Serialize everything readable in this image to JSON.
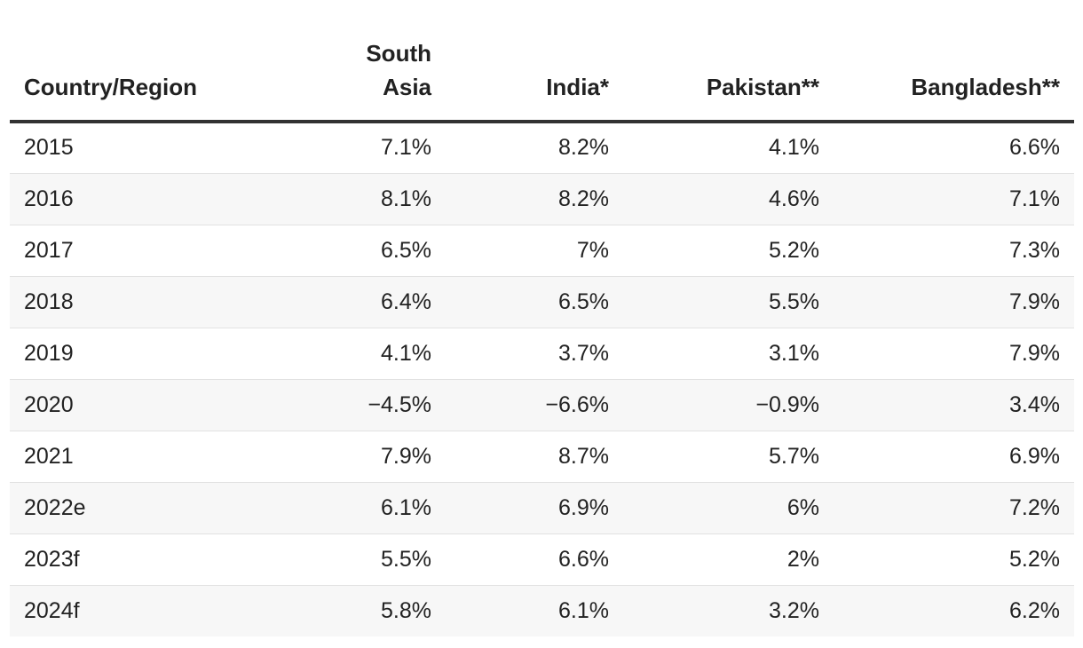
{
  "chart_data": {
    "type": "table",
    "columns": [
      "Country/Region",
      "South Asia",
      "India*",
      "Pakistan**",
      "Bangladesh**"
    ],
    "rows": [
      {
        "label": "2015",
        "values": [
          "7.1%",
          "8.2%",
          "4.1%",
          "6.6%"
        ]
      },
      {
        "label": "2016",
        "values": [
          "8.1%",
          "8.2%",
          "4.6%",
          "7.1%"
        ]
      },
      {
        "label": "2017",
        "values": [
          "6.5%",
          "7%",
          "5.2%",
          "7.3%"
        ]
      },
      {
        "label": "2018",
        "values": [
          "6.4%",
          "6.5%",
          "5.5%",
          "7.9%"
        ]
      },
      {
        "label": "2019",
        "values": [
          "4.1%",
          "3.7%",
          "3.1%",
          "7.9%"
        ]
      },
      {
        "label": "2020",
        "values": [
          "−4.5%",
          "−6.6%",
          "−0.9%",
          "3.4%"
        ]
      },
      {
        "label": "2021",
        "values": [
          "7.9%",
          "8.7%",
          "5.7%",
          "6.9%"
        ]
      },
      {
        "label": "2022e",
        "values": [
          "6.1%",
          "6.9%",
          "6%",
          "7.2%"
        ]
      },
      {
        "label": "2023f",
        "values": [
          "5.5%",
          "6.6%",
          "2%",
          "5.2%"
        ]
      },
      {
        "label": "2024f",
        "values": [
          "5.8%",
          "6.1%",
          "3.2%",
          "6.2%"
        ]
      }
    ]
  }
}
